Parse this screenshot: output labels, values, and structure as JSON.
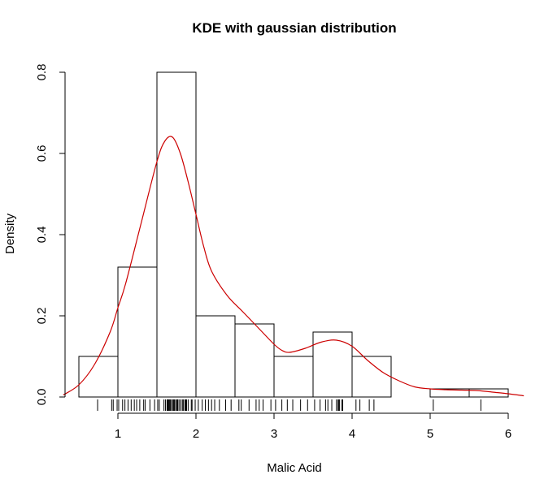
{
  "chart_data": {
    "type": "histogram",
    "title": "KDE with gaussian distribution",
    "xlabel": "Malic Acid",
    "ylabel": "Density",
    "xlim": [
      0.3,
      6.3
    ],
    "ylim": [
      0,
      0.8
    ],
    "x_ticks": [
      "1",
      "2",
      "3",
      "4",
      "5",
      "6"
    ],
    "y_ticks": [
      "0.0",
      "0.2",
      "0.4",
      "0.6",
      "0.8"
    ],
    "bins": [
      {
        "start": 0.5,
        "end": 1.0,
        "density": 0.1
      },
      {
        "start": 1.0,
        "end": 1.5,
        "density": 0.32
      },
      {
        "start": 1.5,
        "end": 2.0,
        "density": 0.8
      },
      {
        "start": 2.0,
        "end": 2.5,
        "density": 0.2
      },
      {
        "start": 2.5,
        "end": 3.0,
        "density": 0.18
      },
      {
        "start": 3.0,
        "end": 3.5,
        "density": 0.1
      },
      {
        "start": 3.5,
        "end": 4.0,
        "density": 0.16
      },
      {
        "start": 4.0,
        "end": 4.5,
        "density": 0.1
      },
      {
        "start": 4.5,
        "end": 5.0,
        "density": 0.0
      },
      {
        "start": 5.0,
        "end": 5.5,
        "density": 0.02
      },
      {
        "start": 5.5,
        "end": 6.0,
        "density": 0.02
      }
    ],
    "kde": {
      "color": "#cc0000",
      "x": [
        0.3,
        0.5,
        0.7,
        0.9,
        1.0,
        1.1,
        1.3,
        1.5,
        1.6,
        1.7,
        1.8,
        1.9,
        2.0,
        2.1,
        2.2,
        2.4,
        2.6,
        2.8,
        3.0,
        3.1,
        3.2,
        3.4,
        3.6,
        3.8,
        4.0,
        4.2,
        4.4,
        4.6,
        4.8,
        5.0,
        5.2,
        5.4,
        5.6,
        5.8,
        6.0,
        6.2
      ],
      "y": [
        0.005,
        0.03,
        0.08,
        0.16,
        0.22,
        0.28,
        0.43,
        0.58,
        0.63,
        0.64,
        0.6,
        0.53,
        0.45,
        0.37,
        0.31,
        0.25,
        0.21,
        0.17,
        0.13,
        0.115,
        0.11,
        0.12,
        0.135,
        0.14,
        0.125,
        0.09,
        0.06,
        0.04,
        0.025,
        0.02,
        0.018,
        0.017,
        0.016,
        0.012,
        0.008,
        0.003
      ]
    },
    "rug": [
      0.74,
      0.92,
      0.94,
      0.99,
      1.01,
      1.06,
      1.09,
      1.13,
      1.17,
      1.21,
      1.24,
      1.28,
      1.33,
      1.35,
      1.41,
      1.47,
      1.51,
      1.53,
      1.59,
      1.61,
      1.63,
      1.64,
      1.65,
      1.66,
      1.67,
      1.68,
      1.7,
      1.71,
      1.72,
      1.73,
      1.75,
      1.76,
      1.77,
      1.79,
      1.81,
      1.83,
      1.84,
      1.86,
      1.87,
      1.88,
      1.9,
      1.94,
      1.95,
      1.99,
      2.03,
      2.08,
      2.12,
      2.16,
      2.2,
      2.24,
      2.3,
      2.38,
      2.45,
      2.55,
      2.58,
      2.68,
      2.77,
      2.81,
      2.86,
      2.96,
      3.02,
      3.1,
      3.17,
      3.24,
      3.34,
      3.43,
      3.52,
      3.59,
      3.66,
      3.69,
      3.74,
      3.8,
      3.82,
      3.83,
      3.84,
      3.87,
      3.88,
      4.05,
      4.1,
      4.22,
      4.28,
      5.04,
      5.65
    ]
  }
}
